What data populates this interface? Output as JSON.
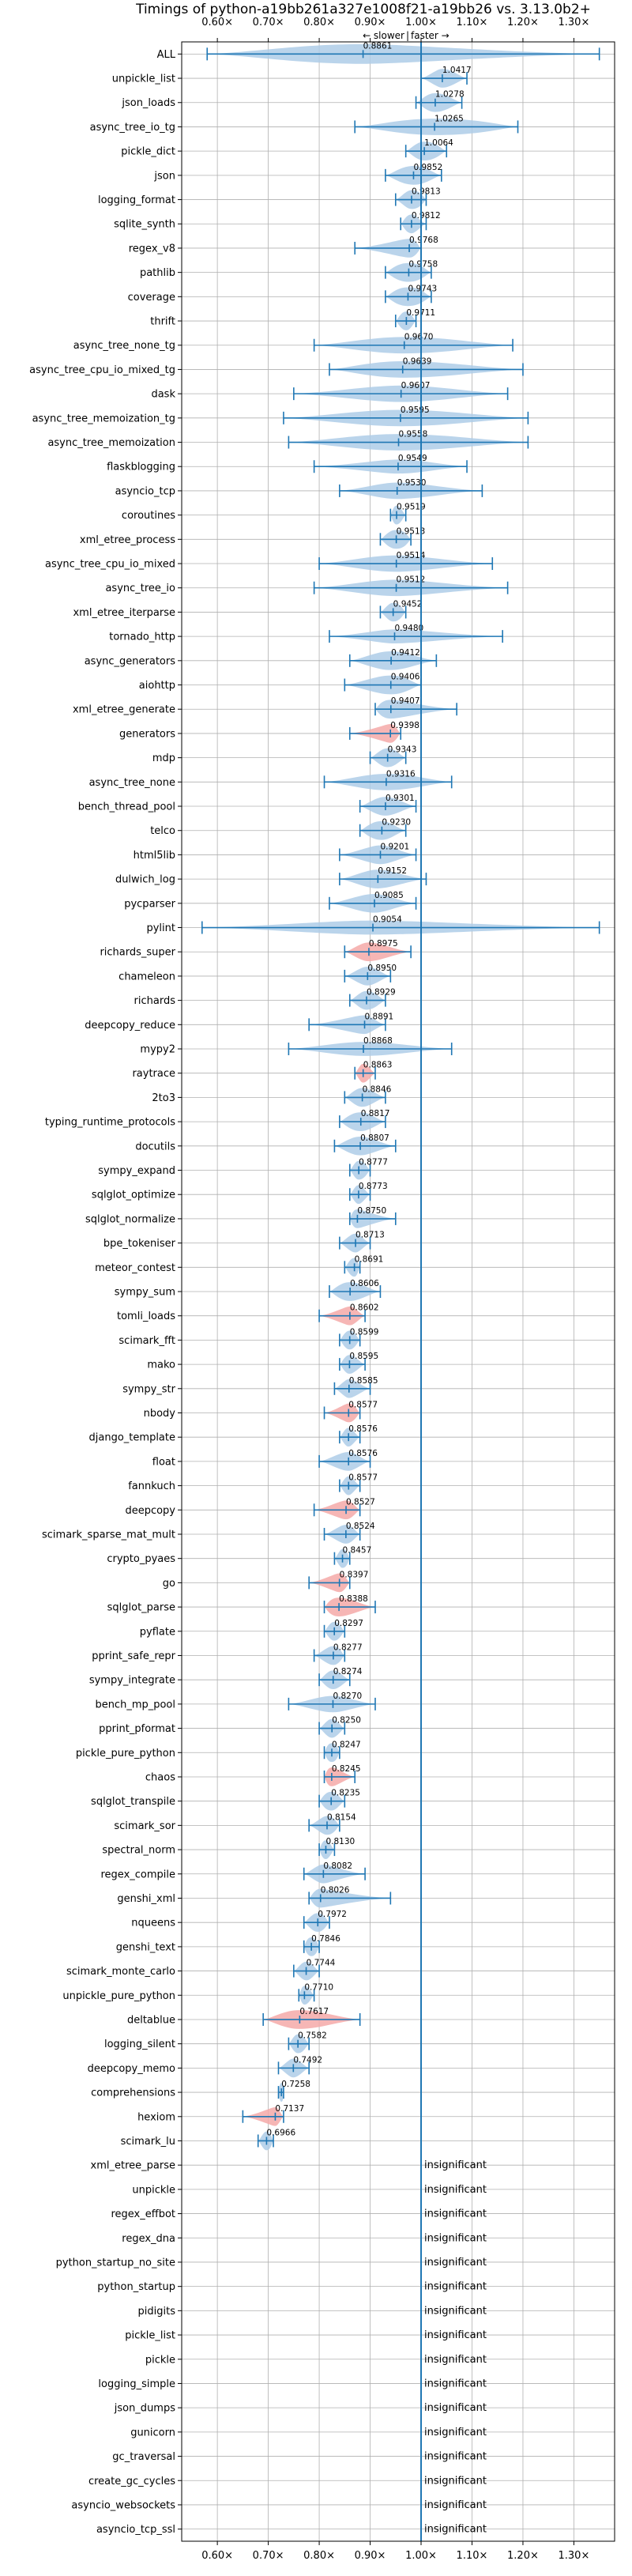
{
  "chart_data": {
    "type": "violin",
    "title": "Timings of python-a19bb261a327e1008f21-a19bb26 vs. 3.13.0b2+",
    "direction_labels": {
      "slower": "← slower",
      "separator": "|",
      "faster": "faster →"
    },
    "x_range": [
      0.53,
      1.38
    ],
    "x_ticks": [
      0.6,
      0.7,
      0.8,
      0.9,
      1.0,
      1.1,
      1.2,
      1.3
    ],
    "x_tick_labels": [
      "0.60×",
      "0.70×",
      "0.80×",
      "0.90×",
      "1.00×",
      "1.10×",
      "1.20×",
      "1.30×"
    ],
    "reference_line": 1.0,
    "grid": true,
    "colors": {
      "normal": "#1f77b4",
      "violin": "#aecde8",
      "highlight": "#f4a9a8"
    },
    "insignificant_text": "insignificant",
    "rows": [
      {
        "name": "ALL",
        "label": "0.8861",
        "value": 0.8861,
        "lo": 0.58,
        "hi": 1.35,
        "q1": 0.76,
        "q3": 0.97,
        "w": 0.42
      },
      {
        "name": "unpickle_list",
        "label": "1.0417",
        "value": 1.0417,
        "lo": 1.0,
        "hi": 1.09,
        "q1": 1.03,
        "q3": 1.06,
        "w": 0.4
      },
      {
        "name": "json_loads",
        "label": "1.0278",
        "value": 1.0278,
        "lo": 0.99,
        "hi": 1.08,
        "q1": 1.01,
        "q3": 1.05,
        "w": 0.4
      },
      {
        "name": "async_tree_io_tg",
        "label": "1.0265",
        "value": 1.0265,
        "lo": 0.87,
        "hi": 1.19,
        "q1": 0.96,
        "q3": 1.12,
        "w": 0.35
      },
      {
        "name": "pickle_dict",
        "label": "1.0064",
        "value": 1.0064,
        "lo": 0.97,
        "hi": 1.05,
        "q1": 0.99,
        "q3": 1.03,
        "w": 0.4
      },
      {
        "name": "json",
        "label": "0.9852",
        "value": 0.9852,
        "lo": 0.93,
        "hi": 1.04,
        "q1": 0.96,
        "q3": 1.01,
        "w": 0.4
      },
      {
        "name": "logging_format",
        "label": "0.9813",
        "value": 0.9813,
        "lo": 0.95,
        "hi": 1.01,
        "q1": 0.97,
        "q3": 1.0,
        "w": 0.4
      },
      {
        "name": "sqlite_synth",
        "label": "0.9812",
        "value": 0.9812,
        "lo": 0.96,
        "hi": 1.01,
        "q1": 0.97,
        "q3": 0.99,
        "w": 0.4
      },
      {
        "name": "regex_v8",
        "label": "0.9768",
        "value": 0.9768,
        "lo": 0.87,
        "hi": 1.0,
        "q1": 0.96,
        "q3": 0.99,
        "w": 0.4
      },
      {
        "name": "pathlib",
        "label": "0.9758",
        "value": 0.9758,
        "lo": 0.93,
        "hi": 1.02,
        "q1": 0.95,
        "q3": 1.0,
        "w": 0.4
      },
      {
        "name": "coverage",
        "label": "0.9743",
        "value": 0.9743,
        "lo": 0.93,
        "hi": 1.02,
        "q1": 0.95,
        "q3": 1.0,
        "w": 0.4
      },
      {
        "name": "thrift",
        "label": "0.9711",
        "value": 0.9711,
        "lo": 0.95,
        "hi": 0.99,
        "q1": 0.96,
        "q3": 0.98,
        "w": 0.4
      },
      {
        "name": "async_tree_none_tg",
        "label": "0.9670",
        "value": 0.967,
        "lo": 0.79,
        "hi": 1.18,
        "q1": 0.9,
        "q3": 1.05,
        "w": 0.35
      },
      {
        "name": "async_tree_cpu_io_mixed_tg",
        "label": "0.9639",
        "value": 0.9639,
        "lo": 0.82,
        "hi": 1.2,
        "q1": 0.9,
        "q3": 1.05,
        "w": 0.35
      },
      {
        "name": "dask",
        "label": "0.9607",
        "value": 0.9607,
        "lo": 0.75,
        "hi": 1.17,
        "q1": 0.9,
        "q3": 1.03,
        "w": 0.35
      },
      {
        "name": "async_tree_memoization_tg",
        "label": "0.9595",
        "value": 0.9595,
        "lo": 0.73,
        "hi": 1.21,
        "q1": 0.88,
        "q3": 1.05,
        "w": 0.35
      },
      {
        "name": "async_tree_memoization",
        "label": "0.9558",
        "value": 0.9558,
        "lo": 0.74,
        "hi": 1.21,
        "q1": 0.88,
        "q3": 1.05,
        "w": 0.35
      },
      {
        "name": "flaskblogging",
        "label": "0.9549",
        "value": 0.9549,
        "lo": 0.79,
        "hi": 1.09,
        "q1": 0.92,
        "q3": 1.0,
        "w": 0.3
      },
      {
        "name": "asyncio_tcp",
        "label": "0.9530",
        "value": 0.953,
        "lo": 0.84,
        "hi": 1.12,
        "q1": 0.92,
        "q3": 1.0,
        "w": 0.35
      },
      {
        "name": "coroutines",
        "label": "0.9519",
        "value": 0.9519,
        "lo": 0.94,
        "hi": 0.97,
        "q1": 0.945,
        "q3": 0.96,
        "w": 0.4
      },
      {
        "name": "xml_etree_process",
        "label": "0.9513",
        "value": 0.9513,
        "lo": 0.92,
        "hi": 0.98,
        "q1": 0.935,
        "q3": 0.97,
        "w": 0.4
      },
      {
        "name": "async_tree_cpu_io_mixed",
        "label": "0.9514",
        "value": 0.9514,
        "lo": 0.8,
        "hi": 1.14,
        "q1": 0.9,
        "q3": 1.0,
        "w": 0.35
      },
      {
        "name": "async_tree_io",
        "label": "0.9512",
        "value": 0.9512,
        "lo": 0.79,
        "hi": 1.17,
        "q1": 0.9,
        "q3": 1.0,
        "w": 0.35
      },
      {
        "name": "xml_etree_iterparse",
        "label": "0.9452",
        "value": 0.9452,
        "lo": 0.92,
        "hi": 0.97,
        "q1": 0.935,
        "q3": 0.96,
        "w": 0.4
      },
      {
        "name": "tornado_http",
        "label": "0.9480",
        "value": 0.948,
        "lo": 0.82,
        "hi": 1.16,
        "q1": 0.92,
        "q3": 0.99,
        "w": 0.3
      },
      {
        "name": "async_generators",
        "label": "0.9412",
        "value": 0.9412,
        "lo": 0.86,
        "hi": 1.03,
        "q1": 0.91,
        "q3": 0.97,
        "w": 0.4
      },
      {
        "name": "aiohttp",
        "label": "0.9406",
        "value": 0.9406,
        "lo": 0.85,
        "hi": 1.0,
        "q1": 0.91,
        "q3": 0.97,
        "w": 0.4
      },
      {
        "name": "xml_etree_generate",
        "label": "0.9407",
        "value": 0.9407,
        "lo": 0.91,
        "hi": 1.07,
        "q1": 0.92,
        "q3": 0.96,
        "w": 0.4
      },
      {
        "name": "generators",
        "label": "0.9398",
        "value": 0.9398,
        "lo": 0.86,
        "hi": 0.96,
        "q1": 0.93,
        "q3": 0.95,
        "w": 0.4,
        "highlight": true
      },
      {
        "name": "mdp",
        "label": "0.9343",
        "value": 0.9343,
        "lo": 0.9,
        "hi": 0.97,
        "q1": 0.92,
        "q3": 0.95,
        "w": 0.4
      },
      {
        "name": "async_tree_none",
        "label": "0.9316",
        "value": 0.9316,
        "lo": 0.81,
        "hi": 1.06,
        "q1": 0.89,
        "q3": 0.98,
        "w": 0.35
      },
      {
        "name": "bench_thread_pool",
        "label": "0.9301",
        "value": 0.9301,
        "lo": 0.88,
        "hi": 0.99,
        "q1": 0.91,
        "q3": 0.95,
        "w": 0.4
      },
      {
        "name": "telco",
        "label": "0.9230",
        "value": 0.923,
        "lo": 0.88,
        "hi": 0.97,
        "q1": 0.9,
        "q3": 0.94,
        "w": 0.4
      },
      {
        "name": "html5lib",
        "label": "0.9201",
        "value": 0.9201,
        "lo": 0.84,
        "hi": 0.99,
        "q1": 0.9,
        "q3": 0.94,
        "w": 0.4
      },
      {
        "name": "dulwich_log",
        "label": "0.9152",
        "value": 0.9152,
        "lo": 0.84,
        "hi": 1.01,
        "q1": 0.89,
        "q3": 0.94,
        "w": 0.4
      },
      {
        "name": "pycparser",
        "label": "0.9085",
        "value": 0.9085,
        "lo": 0.82,
        "hi": 0.99,
        "q1": 0.88,
        "q3": 0.93,
        "w": 0.4
      },
      {
        "name": "pylint",
        "label": "0.9054",
        "value": 0.9054,
        "lo": 0.57,
        "hi": 1.35,
        "q1": 0.82,
        "q3": 1.0,
        "w": 0.3
      },
      {
        "name": "richards_super",
        "label": "0.8975",
        "value": 0.8975,
        "lo": 0.85,
        "hi": 0.98,
        "q1": 0.88,
        "q3": 0.92,
        "w": 0.4,
        "highlight": true
      },
      {
        "name": "chameleon",
        "label": "0.8950",
        "value": 0.895,
        "lo": 0.85,
        "hi": 0.94,
        "q1": 0.88,
        "q3": 0.91,
        "w": 0.4
      },
      {
        "name": "richards",
        "label": "0.8929",
        "value": 0.8929,
        "lo": 0.86,
        "hi": 0.93,
        "q1": 0.88,
        "q3": 0.91,
        "w": 0.4
      },
      {
        "name": "deepcopy_reduce",
        "label": "0.8891",
        "value": 0.8891,
        "lo": 0.78,
        "hi": 0.93,
        "q1": 0.87,
        "q3": 0.9,
        "w": 0.4
      },
      {
        "name": "mypy2",
        "label": "0.8868",
        "value": 0.8868,
        "lo": 0.74,
        "hi": 1.06,
        "q1": 0.84,
        "q3": 0.94,
        "w": 0.3
      },
      {
        "name": "raytrace",
        "label": "0.8863",
        "value": 0.8863,
        "lo": 0.87,
        "hi": 0.91,
        "q1": 0.88,
        "q3": 0.895,
        "w": 0.4,
        "highlight": true
      },
      {
        "name": "2to3",
        "label": "0.8846",
        "value": 0.8846,
        "lo": 0.85,
        "hi": 0.93,
        "q1": 0.87,
        "q3": 0.9,
        "w": 0.4
      },
      {
        "name": "typing_runtime_protocols",
        "label": "0.8817",
        "value": 0.8817,
        "lo": 0.84,
        "hi": 0.93,
        "q1": 0.86,
        "q3": 0.9,
        "w": 0.4
      },
      {
        "name": "docutils",
        "label": "0.8807",
        "value": 0.8807,
        "lo": 0.83,
        "hi": 0.95,
        "q1": 0.86,
        "q3": 0.9,
        "w": 0.4
      },
      {
        "name": "sympy_expand",
        "label": "0.8777",
        "value": 0.8777,
        "lo": 0.86,
        "hi": 0.9,
        "q1": 0.87,
        "q3": 0.89,
        "w": 0.4
      },
      {
        "name": "sqlglot_optimize",
        "label": "0.8773",
        "value": 0.8773,
        "lo": 0.86,
        "hi": 0.9,
        "q1": 0.87,
        "q3": 0.885,
        "w": 0.4
      },
      {
        "name": "sqlglot_normalize",
        "label": "0.8750",
        "value": 0.875,
        "lo": 0.86,
        "hi": 0.95,
        "q1": 0.865,
        "q3": 0.885,
        "w": 0.4
      },
      {
        "name": "bpe_tokeniser",
        "label": "0.8713",
        "value": 0.8713,
        "lo": 0.84,
        "hi": 0.9,
        "q1": 0.86,
        "q3": 0.88,
        "w": 0.4
      },
      {
        "name": "meteor_contest",
        "label": "0.8691",
        "value": 0.8691,
        "lo": 0.85,
        "hi": 0.88,
        "q1": 0.86,
        "q3": 0.875,
        "w": 0.4
      },
      {
        "name": "sympy_sum",
        "label": "0.8606",
        "value": 0.8606,
        "lo": 0.82,
        "hi": 0.92,
        "q1": 0.84,
        "q3": 0.88,
        "w": 0.4
      },
      {
        "name": "tomli_loads",
        "label": "0.8602",
        "value": 0.8602,
        "lo": 0.8,
        "hi": 0.89,
        "q1": 0.85,
        "q3": 0.87,
        "w": 0.4,
        "highlight": true
      },
      {
        "name": "scimark_fft",
        "label": "0.8599",
        "value": 0.8599,
        "lo": 0.84,
        "hi": 0.88,
        "q1": 0.85,
        "q3": 0.87,
        "w": 0.4
      },
      {
        "name": "mako",
        "label": "0.8595",
        "value": 0.8595,
        "lo": 0.84,
        "hi": 0.89,
        "q1": 0.85,
        "q3": 0.87,
        "w": 0.4
      },
      {
        "name": "sympy_str",
        "label": "0.8585",
        "value": 0.8585,
        "lo": 0.83,
        "hi": 0.9,
        "q1": 0.85,
        "q3": 0.87,
        "w": 0.4
      },
      {
        "name": "nbody",
        "label": "0.8577",
        "value": 0.8577,
        "lo": 0.81,
        "hi": 0.88,
        "q1": 0.85,
        "q3": 0.87,
        "w": 0.4,
        "highlight": true
      },
      {
        "name": "django_template",
        "label": "0.8576",
        "value": 0.8576,
        "lo": 0.84,
        "hi": 0.88,
        "q1": 0.85,
        "q3": 0.865,
        "w": 0.4
      },
      {
        "name": "float",
        "label": "0.8576",
        "value": 0.8576,
        "lo": 0.8,
        "hi": 0.9,
        "q1": 0.84,
        "q3": 0.87,
        "w": 0.4
      },
      {
        "name": "fannkuch",
        "label": "0.8577",
        "value": 0.8577,
        "lo": 0.84,
        "hi": 0.88,
        "q1": 0.85,
        "q3": 0.865,
        "w": 0.4
      },
      {
        "name": "deepcopy",
        "label": "0.8527",
        "value": 0.8527,
        "lo": 0.79,
        "hi": 0.88,
        "q1": 0.84,
        "q3": 0.865,
        "w": 0.4,
        "highlight": true
      },
      {
        "name": "scimark_sparse_mat_mult",
        "label": "0.8524",
        "value": 0.8524,
        "lo": 0.81,
        "hi": 0.88,
        "q1": 0.84,
        "q3": 0.865,
        "w": 0.4
      },
      {
        "name": "crypto_pyaes",
        "label": "0.8457",
        "value": 0.8457,
        "lo": 0.83,
        "hi": 0.86,
        "q1": 0.84,
        "q3": 0.855,
        "w": 0.4
      },
      {
        "name": "go",
        "label": "0.8397",
        "value": 0.8397,
        "lo": 0.78,
        "hi": 0.86,
        "q1": 0.83,
        "q3": 0.85,
        "w": 0.4,
        "highlight": true
      },
      {
        "name": "sqlglot_parse",
        "label": "0.8388",
        "value": 0.8388,
        "lo": 0.81,
        "hi": 0.91,
        "q1": 0.82,
        "q3": 0.86,
        "w": 0.4,
        "highlight": true
      },
      {
        "name": "pyflate",
        "label": "0.8297",
        "value": 0.8297,
        "lo": 0.81,
        "hi": 0.85,
        "q1": 0.82,
        "q3": 0.84,
        "w": 0.4
      },
      {
        "name": "pprint_safe_repr",
        "label": "0.8277",
        "value": 0.8277,
        "lo": 0.79,
        "hi": 0.85,
        "q1": 0.815,
        "q3": 0.84,
        "w": 0.4
      },
      {
        "name": "sympy_integrate",
        "label": "0.8274",
        "value": 0.8274,
        "lo": 0.8,
        "hi": 0.86,
        "q1": 0.815,
        "q3": 0.84,
        "w": 0.4
      },
      {
        "name": "bench_mp_pool",
        "label": "0.8270",
        "value": 0.827,
        "lo": 0.74,
        "hi": 0.91,
        "q1": 0.8,
        "q3": 0.85,
        "w": 0.35
      },
      {
        "name": "pprint_pformat",
        "label": "0.8250",
        "value": 0.825,
        "lo": 0.8,
        "hi": 0.85,
        "q1": 0.815,
        "q3": 0.835,
        "w": 0.4
      },
      {
        "name": "pickle_pure_python",
        "label": "0.8247",
        "value": 0.8247,
        "lo": 0.81,
        "hi": 0.84,
        "q1": 0.815,
        "q3": 0.835,
        "w": 0.4
      },
      {
        "name": "chaos",
        "label": "0.8245",
        "value": 0.8245,
        "lo": 0.81,
        "hi": 0.87,
        "q1": 0.815,
        "q3": 0.835,
        "w": 0.4,
        "highlight": true
      },
      {
        "name": "sqlglot_transpile",
        "label": "0.8235",
        "value": 0.8235,
        "lo": 0.8,
        "hi": 0.85,
        "q1": 0.81,
        "q3": 0.835,
        "w": 0.4
      },
      {
        "name": "scimark_sor",
        "label": "0.8154",
        "value": 0.8154,
        "lo": 0.78,
        "hi": 0.84,
        "q1": 0.805,
        "q3": 0.83,
        "w": 0.4
      },
      {
        "name": "spectral_norm",
        "label": "0.8130",
        "value": 0.813,
        "lo": 0.8,
        "hi": 0.83,
        "q1": 0.805,
        "q3": 0.82,
        "w": 0.4
      },
      {
        "name": "regex_compile",
        "label": "0.8082",
        "value": 0.8082,
        "lo": 0.77,
        "hi": 0.89,
        "q1": 0.795,
        "q3": 0.82,
        "w": 0.4
      },
      {
        "name": "genshi_xml",
        "label": "0.8026",
        "value": 0.8026,
        "lo": 0.78,
        "hi": 0.94,
        "q1": 0.79,
        "q3": 0.815,
        "w": 0.4
      },
      {
        "name": "nqueens",
        "label": "0.7972",
        "value": 0.7972,
        "lo": 0.77,
        "hi": 0.82,
        "q1": 0.785,
        "q3": 0.81,
        "w": 0.4
      },
      {
        "name": "genshi_text",
        "label": "0.7846",
        "value": 0.7846,
        "lo": 0.77,
        "hi": 0.8,
        "q1": 0.775,
        "q3": 0.795,
        "w": 0.4
      },
      {
        "name": "scimark_monte_carlo",
        "label": "0.7744",
        "value": 0.7744,
        "lo": 0.75,
        "hi": 0.8,
        "q1": 0.765,
        "q3": 0.785,
        "w": 0.4
      },
      {
        "name": "unpickle_pure_python",
        "label": "0.7710",
        "value": 0.771,
        "lo": 0.76,
        "hi": 0.79,
        "q1": 0.765,
        "q3": 0.78,
        "w": 0.4
      },
      {
        "name": "deltablue",
        "label": "0.7617",
        "value": 0.7617,
        "lo": 0.69,
        "hi": 0.88,
        "q1": 0.73,
        "q3": 0.8,
        "w": 0.4,
        "highlight": true
      },
      {
        "name": "logging_silent",
        "label": "0.7582",
        "value": 0.7582,
        "lo": 0.74,
        "hi": 0.78,
        "q1": 0.75,
        "q3": 0.77,
        "w": 0.4
      },
      {
        "name": "deepcopy_memo",
        "label": "0.7492",
        "value": 0.7492,
        "lo": 0.72,
        "hi": 0.78,
        "q1": 0.74,
        "q3": 0.76,
        "w": 0.4
      },
      {
        "name": "comprehensions",
        "label": "0.7258",
        "value": 0.7258,
        "lo": 0.72,
        "hi": 0.73,
        "q1": 0.722,
        "q3": 0.73,
        "w": 0.4
      },
      {
        "name": "hexiom",
        "label": "0.7137",
        "value": 0.7137,
        "lo": 0.65,
        "hi": 0.73,
        "q1": 0.705,
        "q3": 0.72,
        "w": 0.4,
        "highlight": true
      },
      {
        "name": "scimark_lu",
        "label": "0.6966",
        "value": 0.6966,
        "lo": 0.68,
        "hi": 0.71,
        "q1": 0.69,
        "q3": 0.705,
        "w": 0.4
      },
      {
        "name": "xml_etree_parse",
        "insignificant": true
      },
      {
        "name": "unpickle",
        "insignificant": true
      },
      {
        "name": "regex_effbot",
        "insignificant": true
      },
      {
        "name": "regex_dna",
        "insignificant": true
      },
      {
        "name": "python_startup_no_site",
        "insignificant": true
      },
      {
        "name": "python_startup",
        "insignificant": true
      },
      {
        "name": "pidigits",
        "insignificant": true
      },
      {
        "name": "pickle_list",
        "insignificant": true
      },
      {
        "name": "pickle",
        "insignificant": true
      },
      {
        "name": "logging_simple",
        "insignificant": true
      },
      {
        "name": "json_dumps",
        "insignificant": true
      },
      {
        "name": "gunicorn",
        "insignificant": true
      },
      {
        "name": "gc_traversal",
        "insignificant": true
      },
      {
        "name": "create_gc_cycles",
        "insignificant": true
      },
      {
        "name": "asyncio_websockets",
        "insignificant": true
      },
      {
        "name": "asyncio_tcp_ssl",
        "insignificant": true
      }
    ]
  }
}
